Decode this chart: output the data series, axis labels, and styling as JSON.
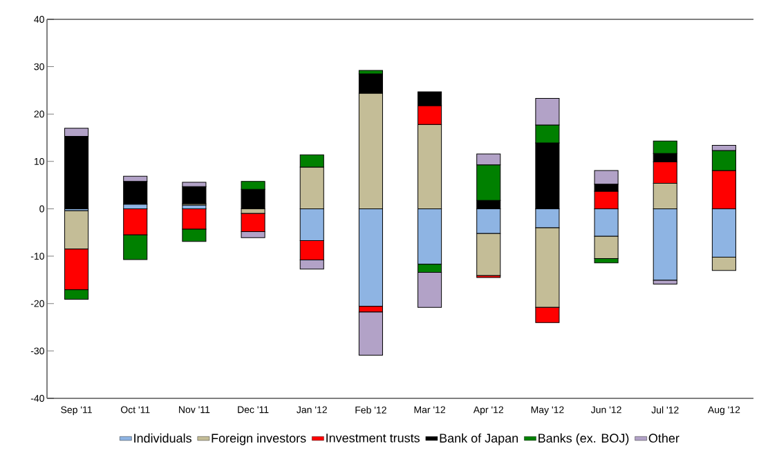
{
  "chart_data": {
    "type": "bar",
    "stacked": true,
    "legend": "bottom",
    "grid": false,
    "categories": [
      "Sep '11",
      "Oct '11",
      "Nov '11",
      "Dec '11",
      "Jan '12",
      "Feb '12",
      "Mar '12",
      "Apr '12",
      "May '12",
      "Jun '12",
      "Jul '12",
      "Aug '12"
    ],
    "ylim": [
      -40,
      40
    ],
    "yticks": [
      -40,
      -30,
      -20,
      -10,
      0,
      10,
      20,
      30,
      40
    ],
    "series": [
      {
        "name": "Individuals",
        "color": "#8eb4e3",
        "values": [
          -0.4,
          1.0,
          0.8,
          null,
          -6.7,
          -20.6,
          -11.7,
          -5.2,
          -4.0,
          -5.8,
          -15.1,
          -10.2
        ]
      },
      {
        "name": "Foreign investors",
        "color": "#c4bd97",
        "values": [
          -8.1,
          null,
          0.3,
          -1.0,
          8.8,
          24.4,
          17.8,
          -8.9,
          -16.8,
          -4.7,
          5.4,
          -2.8
        ]
      },
      {
        "name": "Investment trusts",
        "color": "#ff0000",
        "values": [
          -8.6,
          -5.5,
          -4.3,
          -3.8,
          -4.1,
          -1.2,
          4.0,
          -0.4,
          -3.2,
          3.7,
          4.5,
          8.1
        ]
      },
      {
        "name": "Bank of Japan",
        "color": "#000000",
        "values": [
          15.3,
          4.8,
          3.6,
          4.1,
          0,
          4.1,
          2.9,
          1.8,
          13.9,
          1.5,
          1.8,
          0
        ]
      },
      {
        "name": "Banks (ex. BOJ)",
        "color": "#008000",
        "values": [
          -2.0,
          -5.2,
          -2.6,
          1.7,
          2.6,
          0.7,
          -1.7,
          7.5,
          3.8,
          -0.9,
          2.6,
          4.2
        ]
      },
      {
        "name": "Other",
        "color": "#b2a2c7",
        "values": [
          1.7,
          1.1,
          0.9,
          -1.3,
          -1.9,
          -9.1,
          -7.4,
          2.3,
          5.6,
          2.9,
          -0.8,
          1.1
        ]
      }
    ]
  }
}
